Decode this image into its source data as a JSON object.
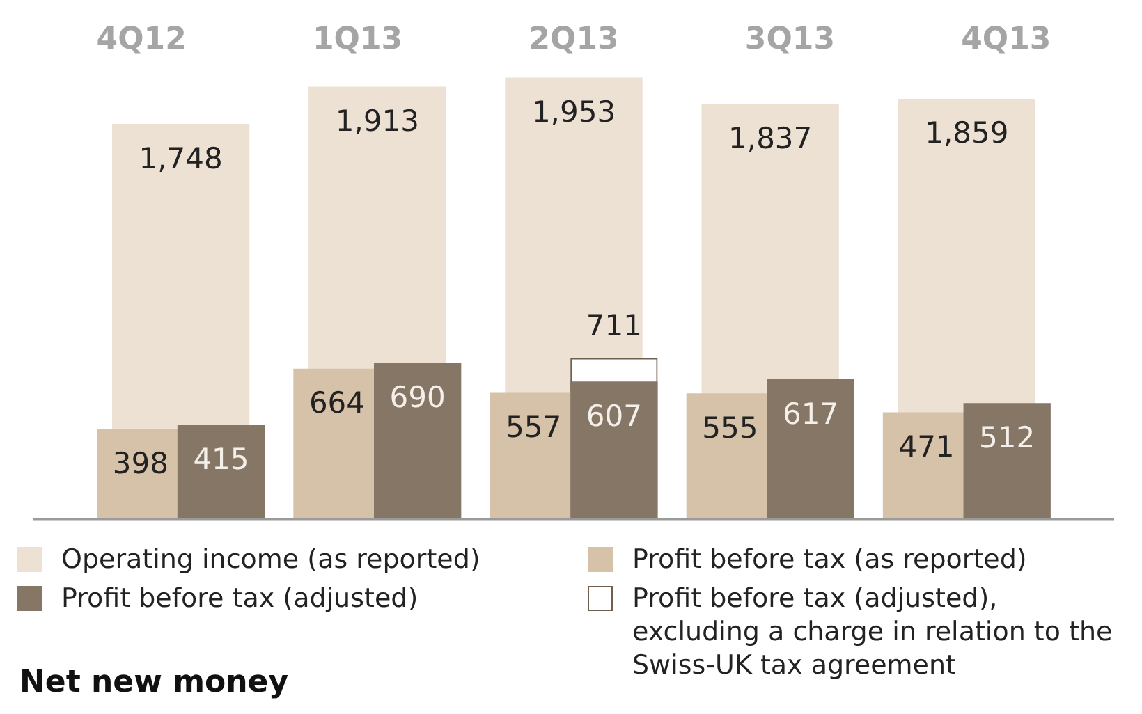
{
  "chart_data": {
    "type": "bar",
    "categories": [
      "4Q12",
      "1Q13",
      "2Q13",
      "3Q13",
      "4Q13"
    ],
    "series": [
      {
        "name": "Operating income (as reported)",
        "color": "#ede1d3",
        "values": [
          1748,
          1913,
          1953,
          1837,
          1859
        ],
        "value_labels": [
          "1,748",
          "1,913",
          "1,953",
          "1,837",
          "1,859"
        ]
      },
      {
        "name": "Profit before tax (as reported)",
        "color": "#d6c2a8",
        "values": [
          398,
          664,
          557,
          555,
          471
        ],
        "value_labels": [
          "398",
          "664",
          "557",
          "555",
          "471"
        ]
      },
      {
        "name": "Profit before tax (adjusted)",
        "color": "#857666",
        "values": [
          415,
          690,
          607,
          617,
          512
        ],
        "value_labels": [
          "415",
          "690",
          "607",
          "617",
          "512"
        ]
      },
      {
        "name": "Profit before tax (adjusted), excluding a charge in relation to the Swiss-UK tax agreement",
        "color": "#ffffff",
        "values": [
          null,
          null,
          711,
          null,
          null
        ],
        "value_labels": [
          null,
          null,
          "711",
          null,
          null
        ]
      }
    ],
    "legend": "bottom",
    "annotations": [
      "Net new money"
    ]
  }
}
